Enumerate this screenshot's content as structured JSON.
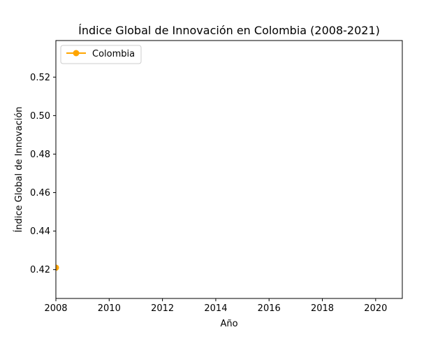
{
  "chart_data": {
    "type": "line",
    "title": "Índice Global de Innovación en Colombia (2008-2021)",
    "xlabel": "Año",
    "ylabel": "Índice Global de Innovación",
    "xlim": [
      2008,
      2021
    ],
    "ylim": [
      0.405,
      0.539
    ],
    "xticks": [
      2008,
      2010,
      2012,
      2014,
      2016,
      2018,
      2020
    ],
    "yticks": [
      0.42,
      0.44,
      0.46,
      0.48,
      0.5,
      0.52
    ],
    "ytick_labels": [
      "0.42",
      "0.44",
      "0.46",
      "0.48",
      "0.50",
      "0.52"
    ],
    "grid": false,
    "legend_position": "top-left",
    "series": [
      {
        "name": "Colombia",
        "color": "#FFA500",
        "marker": "circle",
        "x": [
          2008
        ],
        "y": [
          0.421
        ]
      }
    ]
  }
}
